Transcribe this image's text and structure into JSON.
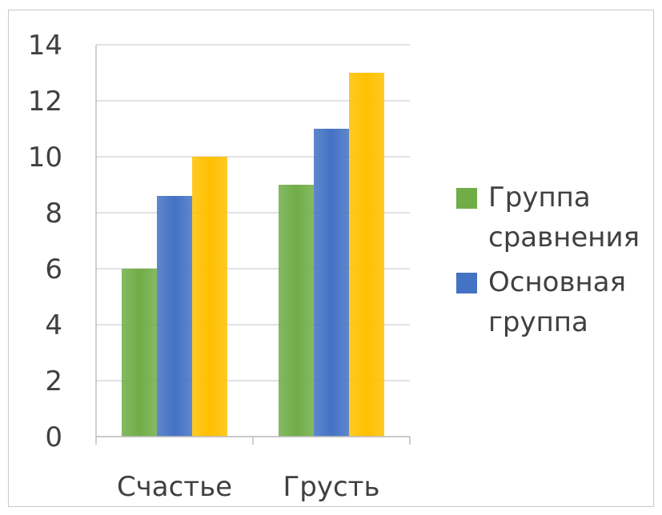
{
  "chart_data": {
    "type": "bar",
    "categories": [
      "Счастье",
      "Грусть"
    ],
    "series": [
      {
        "name": "Группа сравнения",
        "values": [
          6,
          9
        ],
        "color": "#70ad47"
      },
      {
        "name": "Основная группа",
        "values": [
          8.6,
          11
        ],
        "color": "#4472c4"
      },
      {
        "values": [
          10,
          13
        ],
        "color": "#ffc000"
      }
    ],
    "title": "",
    "xlabel": "",
    "ylabel": "",
    "ylim": [
      0,
      14
    ],
    "yticks": [
      0,
      2,
      4,
      6,
      8,
      10,
      12,
      14
    ],
    "grid": true,
    "legend_position": "right"
  }
}
